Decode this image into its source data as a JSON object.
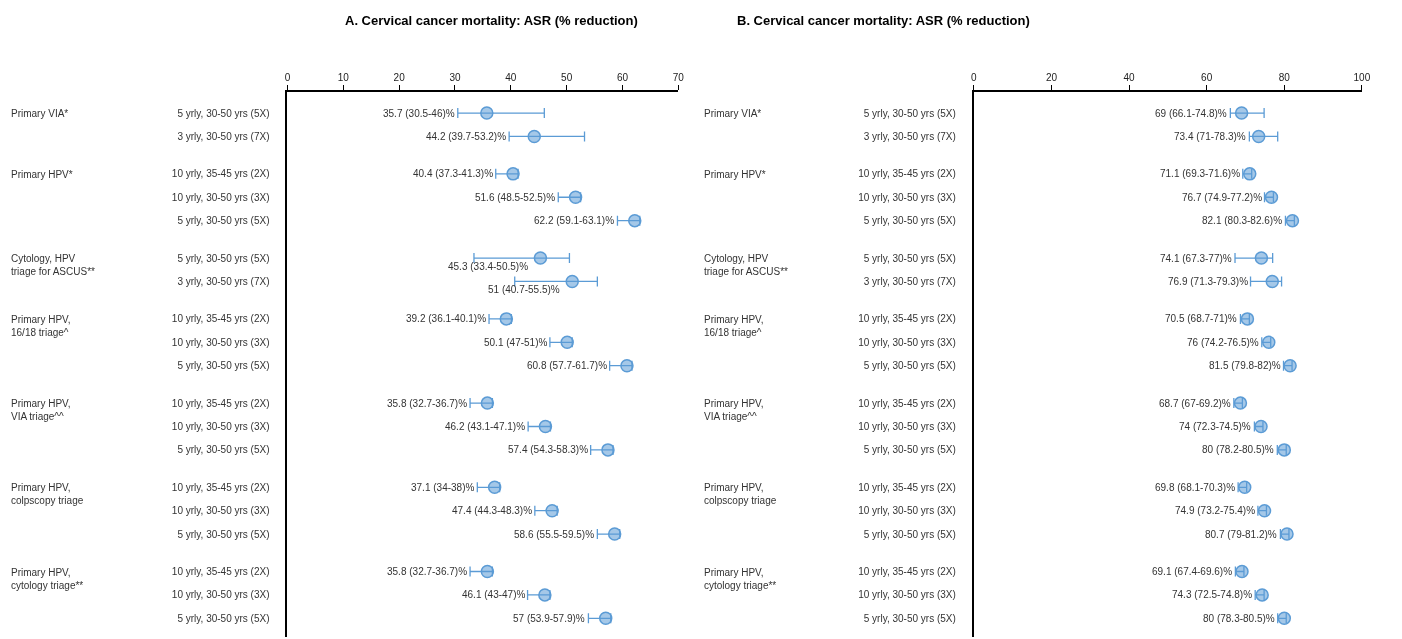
{
  "chart_data": [
    {
      "type": "scatter",
      "orientation": "horizontal",
      "title": "A. Cervical cancer mortality: ASR (% reduction)",
      "marker": "circle",
      "categories": [
        "5 yrly, 30-50 yrs (5X)",
        "3 yrly, 30-50 yrs (7X)",
        "10 yrly, 35-45 yrs (2X)",
        "10 yrly, 30-50 yrs (3X)",
        "5 yrly, 30-50 yrs (5X)",
        "5 yrly, 30-50 yrs (5X)",
        "3 yrly, 30-50 yrs (7X)",
        "10 yrly, 35-45 yrs (2X)",
        "10 yrly, 30-50 yrs (3X)",
        "5 yrly, 30-50 yrs (5X)",
        "10 yrly, 35-45 yrs (2X)",
        "10 yrly, 30-50 yrs (3X)",
        "5 yrly, 30-50 yrs (5X)",
        "10 yrly, 35-45 yrs (2X)",
        "10 yrly, 30-50 yrs (3X)",
        "5 yrly, 30-50 yrs (5X)",
        "10 yrly, 35-45 yrs (2X)",
        "10 yrly, 30-50 yrs (3X)",
        "5 yrly, 30-50 yrs (5X)"
      ],
      "xlim": [
        0,
        70
      ],
      "xticks": [
        0,
        10,
        20,
        30,
        40,
        50,
        60,
        70
      ],
      "annotations": [
        "Primary VIA*",
        "Primary HPV*",
        "Cytology, HPV\ntriage for ASCUS**",
        "Primary HPV,\n16/18 triage^",
        "Primary HPV,\nVIA triage^^",
        "Primary HPV,\ncolpscopy triage",
        "Primary HPV,\ncytology triage**"
      ],
      "series": [
        {
          "color": "#5b9bd5",
          "values": [
            35.7,
            44.2,
            null,
            null,
            null,
            null,
            null,
            null,
            null,
            null,
            null,
            null,
            null,
            null,
            null,
            null,
            null,
            null,
            null
          ],
          "errors": [
            [
              30.5,
              46
            ],
            [
              39.7,
              53.2
            ],
            null,
            null,
            null,
            null,
            null,
            null,
            null,
            null,
            null,
            null,
            null,
            null,
            null,
            null,
            null,
            null,
            null
          ],
          "value_labels": [
            "35.7 (30.5-46)%",
            "44.2 (39.7-53.2)%",
            null,
            null,
            null,
            null,
            null,
            null,
            null,
            null,
            null,
            null,
            null,
            null,
            null,
            null,
            null,
            null,
            null
          ]
        },
        {
          "color": "#5b9bd5",
          "values": [
            null,
            null,
            40.4,
            51.6,
            62.2,
            null,
            null,
            null,
            null,
            null,
            null,
            null,
            null,
            null,
            null,
            null,
            null,
            null,
            null
          ],
          "errors": [
            null,
            null,
            [
              37.3,
              41.3
            ],
            [
              48.5,
              52.5
            ],
            [
              59.1,
              63.1
            ],
            null,
            null,
            null,
            null,
            null,
            null,
            null,
            null,
            null,
            null,
            null,
            null,
            null,
            null
          ],
          "value_labels": [
            null,
            null,
            "40.4 (37.3-41.3)%",
            "51.6 (48.5-52.5)%",
            "62.2 (59.1-63.1)%",
            null,
            null,
            null,
            null,
            null,
            null,
            null,
            null,
            null,
            null,
            null,
            null,
            null,
            null
          ]
        },
        {
          "color": "#5b9bd5",
          "values": [
            null,
            null,
            null,
            null,
            null,
            45.3,
            51,
            null,
            null,
            null,
            null,
            null,
            null,
            null,
            null,
            null,
            null,
            null,
            null
          ],
          "errors": [
            null,
            null,
            null,
            null,
            null,
            [
              33.4,
              50.5
            ],
            [
              40.7,
              55.5
            ],
            null,
            null,
            null,
            null,
            null,
            null,
            null,
            null,
            null,
            null,
            null,
            null
          ],
          "value_labels": [
            null,
            null,
            null,
            null,
            null,
            "45.3 (33.4-50.5)%",
            "51 (40.7-55.5)%",
            null,
            null,
            null,
            null,
            null,
            null,
            null,
            null,
            null,
            null,
            null,
            null
          ]
        },
        {
          "color": "#5b9bd5",
          "values": [
            null,
            null,
            null,
            null,
            null,
            null,
            null,
            39.2,
            50.1,
            60.8,
            null,
            null,
            null,
            null,
            null,
            null,
            null,
            null,
            null
          ],
          "errors": [
            null,
            null,
            null,
            null,
            null,
            null,
            null,
            [
              36.1,
              40.1
            ],
            [
              47,
              51
            ],
            [
              57.7,
              61.7
            ],
            null,
            null,
            null,
            null,
            null,
            null,
            null,
            null,
            null
          ],
          "value_labels": [
            null,
            null,
            null,
            null,
            null,
            null,
            null,
            "39.2 (36.1-40.1)%",
            "50.1 (47-51)%",
            "60.8 (57.7-61.7)%",
            null,
            null,
            null,
            null,
            null,
            null,
            null,
            null,
            null
          ]
        },
        {
          "color": "#5b9bd5",
          "values": [
            null,
            null,
            null,
            null,
            null,
            null,
            null,
            null,
            null,
            null,
            35.8,
            46.2,
            57.4,
            null,
            null,
            null,
            null,
            null,
            null
          ],
          "errors": [
            null,
            null,
            null,
            null,
            null,
            null,
            null,
            null,
            null,
            null,
            [
              32.7,
              36.7
            ],
            [
              43.1,
              47.1
            ],
            [
              54.3,
              58.3
            ],
            null,
            null,
            null,
            null,
            null,
            null
          ],
          "value_labels": [
            null,
            null,
            null,
            null,
            null,
            null,
            null,
            null,
            null,
            null,
            "35.8 (32.7-36.7)%",
            "46.2 (43.1-47.1)%",
            "57.4 (54.3-58.3)%",
            null,
            null,
            null,
            null,
            null,
            null
          ]
        },
        {
          "color": "#5b9bd5",
          "values": [
            null,
            null,
            null,
            null,
            null,
            null,
            null,
            null,
            null,
            null,
            null,
            null,
            null,
            37.1,
            47.4,
            58.6,
            null,
            null,
            null
          ],
          "errors": [
            null,
            null,
            null,
            null,
            null,
            null,
            null,
            null,
            null,
            null,
            null,
            null,
            null,
            [
              34,
              38
            ],
            [
              44.3,
              48.3
            ],
            [
              55.5,
              59.5
            ],
            null,
            null,
            null
          ],
          "value_labels": [
            null,
            null,
            null,
            null,
            null,
            null,
            null,
            null,
            null,
            null,
            null,
            null,
            null,
            "37.1 (34-38)%",
            "47.4 (44.3-48.3)%",
            "58.6 (55.5-59.5)%",
            null,
            null,
            null
          ]
        },
        {
          "color": "#5b9bd5",
          "values": [
            null,
            null,
            null,
            null,
            null,
            null,
            null,
            null,
            null,
            null,
            null,
            null,
            null,
            null,
            null,
            null,
            35.8,
            46.1,
            57
          ],
          "errors": [
            null,
            null,
            null,
            null,
            null,
            null,
            null,
            null,
            null,
            null,
            null,
            null,
            null,
            null,
            null,
            null,
            [
              32.7,
              36.7
            ],
            [
              43,
              47
            ],
            [
              53.9,
              57.9
            ]
          ],
          "value_labels": [
            null,
            null,
            null,
            null,
            null,
            null,
            null,
            null,
            null,
            null,
            null,
            null,
            null,
            null,
            null,
            null,
            "35.8 (32.7-36.7)%",
            "46.1 (43-47)%",
            "57 (53.9-57.9)%"
          ]
        }
      ]
    },
    {
      "type": "scatter",
      "orientation": "horizontal",
      "title": "B. Cervical cancer mortality: ASR (% reduction)",
      "marker": "circle",
      "categories": [
        "5 yrly, 30-50 yrs (5X)",
        "3 yrly, 30-50 yrs (7X)",
        "10 yrly, 35-45 yrs (2X)",
        "10 yrly, 30-50 yrs (3X)",
        "5 yrly, 30-50 yrs (5X)",
        "5 yrly, 30-50 yrs (5X)",
        "3 yrly, 30-50 yrs (7X)",
        "10 yrly, 35-45 yrs (2X)",
        "10 yrly, 30-50 yrs (3X)",
        "5 yrly, 30-50 yrs (5X)",
        "10 yrly, 35-45 yrs (2X)",
        "10 yrly, 30-50 yrs (3X)",
        "5 yrly, 30-50 yrs (5X)",
        "10 yrly, 35-45 yrs (2X)",
        "10 yrly, 30-50 yrs (3X)",
        "5 yrly, 30-50 yrs (5X)",
        "10 yrly, 35-45 yrs (2X)",
        "10 yrly, 30-50 yrs (3X)",
        "5 yrly, 30-50 yrs (5X)"
      ],
      "xlim": [
        0,
        100
      ],
      "xticks": [
        0,
        20,
        40,
        60,
        80,
        100
      ],
      "annotations": [
        "Primary VIA*",
        "Primary HPV*",
        "Cytology, HPV\ntriage for ASCUS**",
        "Primary HPV,\n16/18 triage^",
        "Primary HPV,\nVIA triage^^",
        "Primary HPV,\ncolpscopy triage",
        "Primary HPV,\ncytology triage**"
      ],
      "series": [
        {
          "color": "#5b9bd5",
          "values": [
            69,
            73.4,
            null,
            null,
            null,
            null,
            null,
            null,
            null,
            null,
            null,
            null,
            null,
            null,
            null,
            null,
            null,
            null,
            null
          ],
          "errors": [
            [
              66.1,
              74.8
            ],
            [
              71,
              78.3
            ],
            null,
            null,
            null,
            null,
            null,
            null,
            null,
            null,
            null,
            null,
            null,
            null,
            null,
            null,
            null,
            null,
            null
          ],
          "value_labels": [
            "69 (66.1-74.8)%",
            "73.4 (71-78.3)%",
            null,
            null,
            null,
            null,
            null,
            null,
            null,
            null,
            null,
            null,
            null,
            null,
            null,
            null,
            null,
            null,
            null
          ]
        },
        {
          "color": "#5b9bd5",
          "values": [
            null,
            null,
            71.1,
            76.7,
            82.1,
            null,
            null,
            null,
            null,
            null,
            null,
            null,
            null,
            null,
            null,
            null,
            null,
            null,
            null
          ],
          "errors": [
            null,
            null,
            [
              69.3,
              71.6
            ],
            [
              74.9,
              77.2
            ],
            [
              80.3,
              82.6
            ],
            null,
            null,
            null,
            null,
            null,
            null,
            null,
            null,
            null,
            null,
            null,
            null,
            null,
            null
          ],
          "value_labels": [
            null,
            null,
            "71.1 (69.3-71.6)%",
            "76.7 (74.9-77.2)%",
            "82.1 (80.3-82.6)%",
            null,
            null,
            null,
            null,
            null,
            null,
            null,
            null,
            null,
            null,
            null,
            null,
            null,
            null
          ]
        },
        {
          "color": "#5b9bd5",
          "values": [
            null,
            null,
            null,
            null,
            null,
            74.1,
            76.9,
            null,
            null,
            null,
            null,
            null,
            null,
            null,
            null,
            null,
            null,
            null,
            null
          ],
          "errors": [
            null,
            null,
            null,
            null,
            null,
            [
              67.3,
              77
            ],
            [
              71.3,
              79.3
            ],
            null,
            null,
            null,
            null,
            null,
            null,
            null,
            null,
            null,
            null,
            null,
            null
          ],
          "value_labels": [
            null,
            null,
            null,
            null,
            null,
            "74.1 (67.3-77)%",
            "76.9 (71.3-79.3)%",
            null,
            null,
            null,
            null,
            null,
            null,
            null,
            null,
            null,
            null,
            null,
            null
          ]
        },
        {
          "color": "#5b9bd5",
          "values": [
            null,
            null,
            null,
            null,
            null,
            null,
            null,
            70.5,
            76,
            81.5,
            null,
            null,
            null,
            null,
            null,
            null,
            null,
            null,
            null
          ],
          "errors": [
            null,
            null,
            null,
            null,
            null,
            null,
            null,
            [
              68.7,
              71
            ],
            [
              74.2,
              76.5
            ],
            [
              79.8,
              82
            ],
            null,
            null,
            null,
            null,
            null,
            null,
            null,
            null,
            null
          ],
          "value_labels": [
            null,
            null,
            null,
            null,
            null,
            null,
            null,
            "70.5 (68.7-71)%",
            "76 (74.2-76.5)%",
            "81.5 (79.8-82)%",
            null,
            null,
            null,
            null,
            null,
            null,
            null,
            null,
            null
          ]
        },
        {
          "color": "#5b9bd5",
          "values": [
            null,
            null,
            null,
            null,
            null,
            null,
            null,
            null,
            null,
            null,
            68.7,
            74,
            80,
            null,
            null,
            null,
            null,
            null,
            null
          ],
          "errors": [
            null,
            null,
            null,
            null,
            null,
            null,
            null,
            null,
            null,
            null,
            [
              67,
              69.2
            ],
            [
              72.3,
              74.5
            ],
            [
              78.2,
              80.5
            ],
            null,
            null,
            null,
            null,
            null,
            null
          ],
          "value_labels": [
            null,
            null,
            null,
            null,
            null,
            null,
            null,
            null,
            null,
            null,
            "68.7 (67-69.2)%",
            "74 (72.3-74.5)%",
            "80 (78.2-80.5)%",
            null,
            null,
            null,
            null,
            null,
            null
          ]
        },
        {
          "color": "#5b9bd5",
          "values": [
            null,
            null,
            null,
            null,
            null,
            null,
            null,
            null,
            null,
            null,
            null,
            null,
            null,
            69.8,
            74.9,
            80.7,
            null,
            null,
            null
          ],
          "errors": [
            null,
            null,
            null,
            null,
            null,
            null,
            null,
            null,
            null,
            null,
            null,
            null,
            null,
            [
              68.1,
              70.3
            ],
            [
              73.2,
              75.4
            ],
            [
              79,
              81.2
            ],
            null,
            null,
            null
          ],
          "value_labels": [
            null,
            null,
            null,
            null,
            null,
            null,
            null,
            null,
            null,
            null,
            null,
            null,
            null,
            "69.8 (68.1-70.3)%",
            "74.9 (73.2-75.4)%",
            "80.7 (79-81.2)%",
            null,
            null,
            null
          ]
        },
        {
          "color": "#5b9bd5",
          "values": [
            null,
            null,
            null,
            null,
            null,
            null,
            null,
            null,
            null,
            null,
            null,
            null,
            null,
            null,
            null,
            null,
            69.1,
            74.3,
            80
          ],
          "errors": [
            null,
            null,
            null,
            null,
            null,
            null,
            null,
            null,
            null,
            null,
            null,
            null,
            null,
            null,
            null,
            null,
            [
              67.4,
              69.6
            ],
            [
              72.5,
              74.8
            ],
            [
              78.3,
              80.5
            ]
          ],
          "value_labels": [
            null,
            null,
            null,
            null,
            null,
            null,
            null,
            null,
            null,
            null,
            null,
            null,
            null,
            null,
            null,
            null,
            "69.1 (67.4-69.6)%",
            "74.3 (72.5-74.8)%",
            "80 (78.3-80.5)%"
          ]
        }
      ]
    }
  ]
}
